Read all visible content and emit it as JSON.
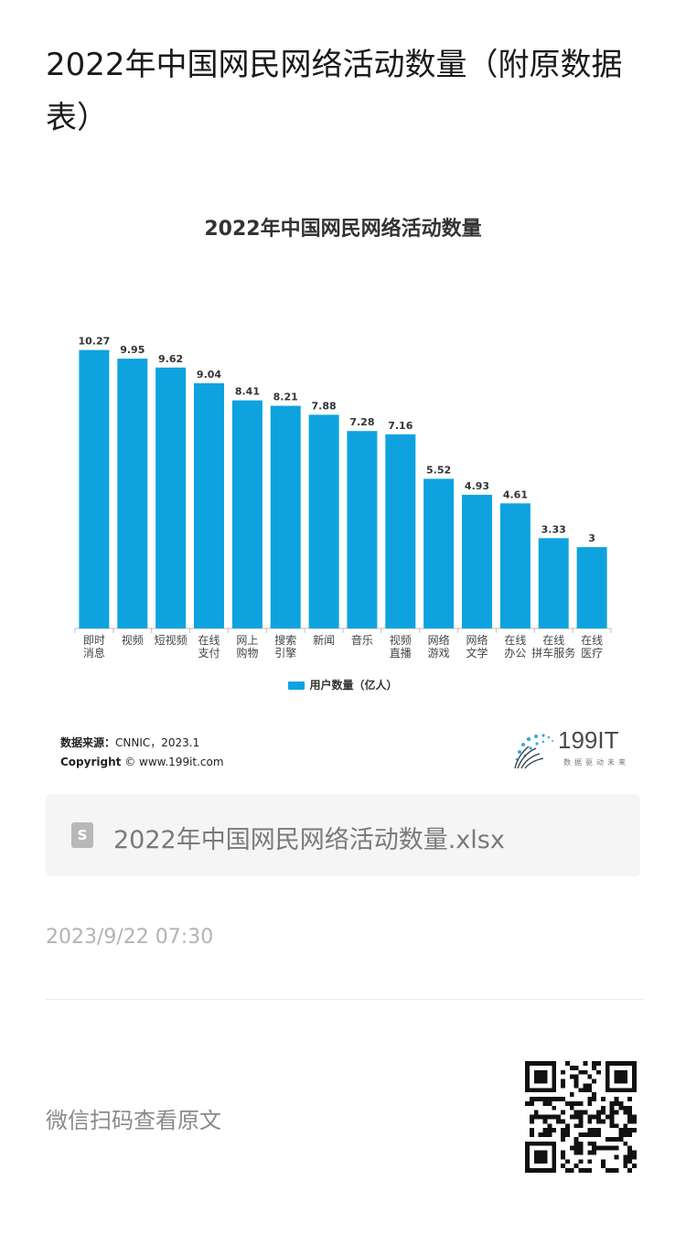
{
  "article": {
    "title": "2022年中国网民网络活动数量（附原数据表）"
  },
  "chart_data": {
    "type": "bar",
    "title": "2022年中国网民网络活动数量",
    "categories": [
      [
        "即时",
        "消息"
      ],
      [
        "视频"
      ],
      [
        "短视频"
      ],
      [
        "在线",
        "支付"
      ],
      [
        "网上",
        "购物"
      ],
      [
        "搜索",
        "引擎"
      ],
      [
        "新闻"
      ],
      [
        "音乐"
      ],
      [
        "视频",
        "直播"
      ],
      [
        "网络",
        "游戏"
      ],
      [
        "网络",
        "文学"
      ],
      [
        "在线",
        "办公"
      ],
      [
        "在线",
        "拼车服务"
      ],
      [
        "在线",
        "医疗"
      ]
    ],
    "series": [
      {
        "name": "用户数量（亿人）",
        "values": [
          10.27,
          9.95,
          9.62,
          9.04,
          8.41,
          8.21,
          7.88,
          7.28,
          7.16,
          5.52,
          4.93,
          4.61,
          3.33,
          3
        ],
        "labels": [
          "10.27",
          "9.95",
          "9.62",
          "9.04",
          "8.41",
          "8.21",
          "7.88",
          "7.28",
          "7.16",
          "5.52",
          "4.93",
          "4.61",
          "3.33",
          "3"
        ],
        "color": "#0ea3df"
      }
    ],
    "ylim": [
      0,
      11.2
    ],
    "grid": false,
    "legend_position": "bottom",
    "xlabel": "",
    "ylabel": ""
  },
  "source": {
    "label": "数据来源：",
    "value": "CNNIC，2023.1",
    "copyright_label": "Copyright",
    "copyright_value": "© www.199it.com"
  },
  "brand": {
    "name": "199IT",
    "slogan": "数据驱动未来"
  },
  "attachment": {
    "icon": "spreadsheet-file-icon",
    "icon_letter": "S",
    "filename": "2022年中国网民网络活动数量.xlsx"
  },
  "timestamp": "2023/9/22 07:30",
  "footer": {
    "scan_text": "微信扫码查看原文",
    "qr_icon": "qr-code-icon"
  }
}
